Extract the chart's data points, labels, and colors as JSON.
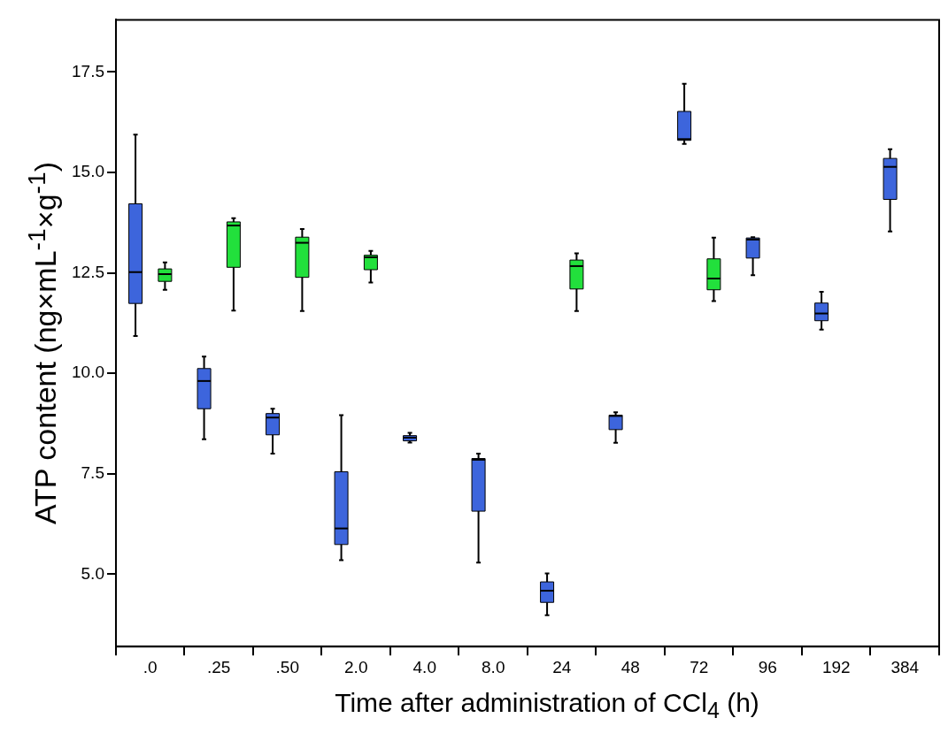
{
  "chart_data": {
    "type": "box",
    "xlabel": "Time after administration of CCl$_{4}$ (h)",
    "ylabel": "ATP content (ng×mL$^{-1}$×g$^{-1}$)",
    "categories": [
      ".0",
      ".25",
      ".50",
      "2.0",
      "4.0",
      "8.0",
      "24",
      "48",
      "72",
      "96",
      "192",
      "384"
    ],
    "ylim": [
      3.2,
      18.8
    ],
    "yticks": [
      {
        "value": 5,
        "label": "5.0"
      },
      7.5,
      {
        "value": 10,
        "label": "10.0"
      },
      12.5,
      {
        "value": 15,
        "label": "15.0"
      },
      17.5
    ],
    "grid": false,
    "legend": false,
    "series": [
      {
        "color": "#3d65dc",
        "boxes": [
          {
            "low": 10.93,
            "q1": 11.74,
            "median": 12.52,
            "q3": 14.22,
            "high": 15.94
          },
          {
            "low": 8.36,
            "q1": 9.12,
            "median": 9.81,
            "q3": 10.12,
            "high": 10.42
          },
          {
            "low": 8.0,
            "q1": 8.47,
            "median": 8.9,
            "q3": 9.0,
            "high": 9.12
          },
          {
            "low": 5.35,
            "q1": 5.74,
            "median": 6.14,
            "q3": 7.55,
            "high": 8.96
          },
          {
            "low": 8.28,
            "q1": 8.32,
            "median": 8.4,
            "q3": 8.45,
            "high": 8.52
          },
          {
            "low": 5.29,
            "q1": 6.57,
            "median": 7.85,
            "q3": 7.88,
            "high": 8.0
          },
          {
            "low": 3.98,
            "q1": 4.3,
            "median": 4.59,
            "q3": 4.81,
            "high": 5.02
          },
          {
            "low": 8.27,
            "q1": 8.6,
            "median": 8.94,
            "q3": 8.96,
            "high": 9.03
          },
          {
            "low": 15.71,
            "q1": 15.8,
            "median": 15.83,
            "q3": 16.52,
            "high": 17.21
          },
          {
            "low": 12.44,
            "q1": 12.87,
            "median": 13.33,
            "q3": 13.37,
            "high": 13.39
          },
          {
            "low": 11.09,
            "q1": 11.31,
            "median": 11.49,
            "q3": 11.75,
            "high": 12.03
          },
          {
            "low": 13.53,
            "q1": 14.33,
            "median": 15.14,
            "q3": 15.35,
            "high": 15.58
          }
        ]
      },
      {
        "color": "#22e03c",
        "boxes": [
          {
            "low": 12.08,
            "q1": 12.29,
            "median": 12.47,
            "q3": 12.6,
            "high": 12.76
          },
          {
            "low": 11.56,
            "q1": 12.64,
            "median": 13.68,
            "q3": 13.77,
            "high": 13.86
          },
          {
            "low": 11.55,
            "q1": 12.39,
            "median": 13.25,
            "q3": 13.39,
            "high": 13.59
          },
          {
            "low": 12.26,
            "q1": 12.58,
            "median": 12.89,
            "q3": 12.94,
            "high": 13.05
          },
          null,
          null,
          {
            "low": 11.55,
            "q1": 12.1,
            "median": 12.67,
            "q3": 12.82,
            "high": 12.99
          },
          null,
          {
            "low": 11.8,
            "q1": 12.08,
            "median": 12.36,
            "q3": 12.85,
            "high": 13.38
          },
          null,
          null,
          null
        ]
      }
    ]
  }
}
